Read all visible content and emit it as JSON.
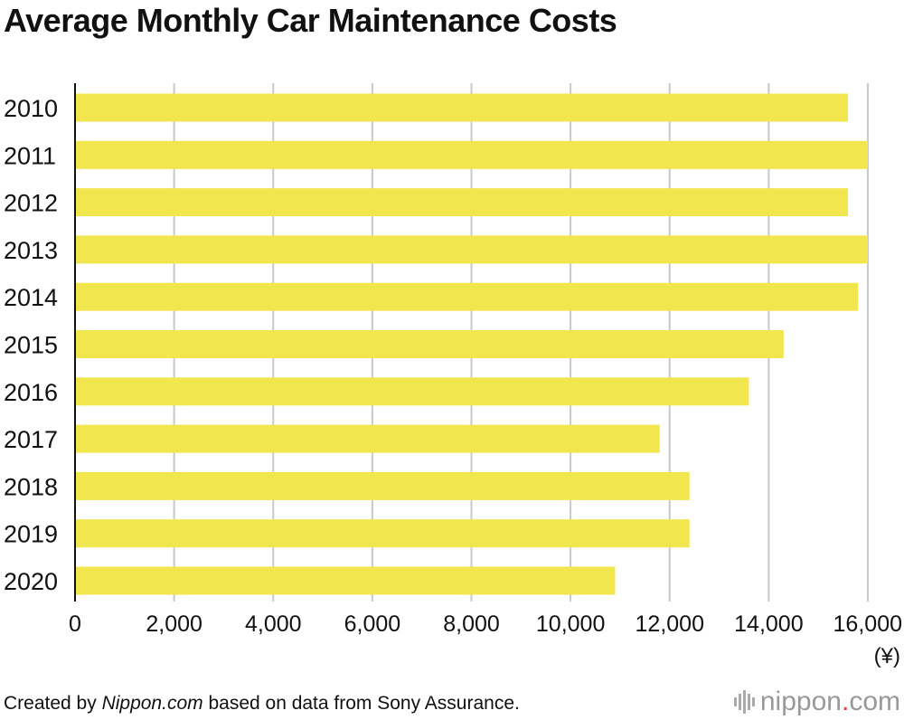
{
  "chart_data": {
    "type": "bar",
    "orientation": "horizontal",
    "title": "Average Monthly Car Maintenance Costs",
    "categories": [
      "2010",
      "2011",
      "2012",
      "2013",
      "2014",
      "2015",
      "2016",
      "2017",
      "2018",
      "2019",
      "2020"
    ],
    "values": [
      15600,
      16000,
      15600,
      16000,
      15800,
      14300,
      13600,
      11800,
      12400,
      12400,
      10900
    ],
    "xlim": [
      0,
      16000
    ],
    "xticks": [
      0,
      2000,
      4000,
      6000,
      8000,
      10000,
      12000,
      14000,
      16000
    ],
    "xtick_labels": [
      "0",
      "2,000",
      "4,000",
      "6,000",
      "8,000",
      "10,000",
      "12,000",
      "14,000",
      "16,000"
    ],
    "unit_label": "(¥)",
    "grid": true,
    "bar_color": "#f2e64f",
    "grid_color": "#c8c8c8"
  },
  "footer": {
    "prefix": "Created by ",
    "source_site": "Nippon.com",
    "suffix": " based on data from Sony Assurance."
  },
  "brand": {
    "name": "nippon",
    "dot": ".",
    "tld": "com",
    "accent_color": "#e8413a"
  }
}
